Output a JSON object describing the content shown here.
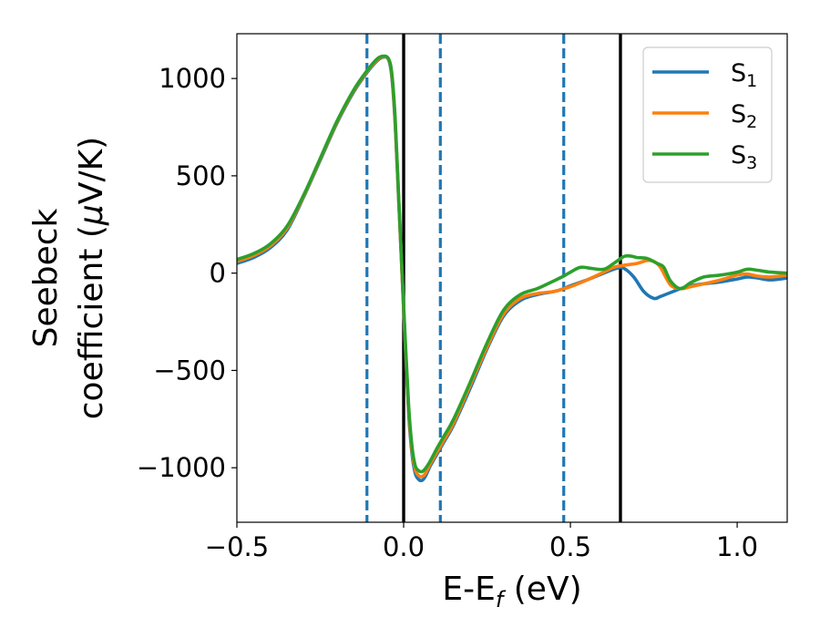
{
  "chart_data": {
    "type": "line",
    "xlabel": "E-E$_f$ (eV)",
    "ylabel": "Seebeck coefficient (μV/K)",
    "xlim": [
      -0.5,
      1.15
    ],
    "ylim": [
      -1280,
      1230
    ],
    "xticks": [
      -0.5,
      0.0,
      0.5,
      1.0
    ],
    "xtick_labels": [
      "−0.5",
      "0.0",
      "0.5",
      "1.0"
    ],
    "yticks": [
      -1000,
      -500,
      0,
      500,
      1000
    ],
    "ytick_labels": [
      "−1000",
      "−500",
      "0",
      "500",
      "1000"
    ],
    "grid": false,
    "legend_position": "top-right",
    "series": [
      {
        "name": "S1",
        "legend_main": "S",
        "legend_sub": "1",
        "color": "#1f77b4",
        "x": [
          -0.5,
          -0.45,
          -0.4,
          -0.35,
          -0.3,
          -0.25,
          -0.2,
          -0.15,
          -0.11,
          -0.08,
          -0.06,
          -0.045,
          -0.035,
          -0.025,
          -0.015,
          -0.005,
          0.005,
          0.015,
          0.025,
          0.035,
          0.045,
          0.055,
          0.065,
          0.08,
          0.1,
          0.12,
          0.15,
          0.2,
          0.25,
          0.3,
          0.35,
          0.4,
          0.45,
          0.48,
          0.5,
          0.55,
          0.6,
          0.64,
          0.66,
          0.69,
          0.72,
          0.75,
          0.77,
          0.8,
          0.83,
          0.86,
          0.9,
          0.95,
          1.0,
          1.03,
          1.06,
          1.1,
          1.15
        ],
        "y": [
          50,
          80,
          130,
          220,
          390,
          580,
          770,
          930,
          1030,
          1090,
          1110,
          1095,
          1000,
          750,
          380,
          0,
          -380,
          -720,
          -930,
          -1030,
          -1060,
          -1065,
          -1045,
          -990,
          -930,
          -870,
          -780,
          -590,
          -390,
          -220,
          -140,
          -110,
          -95,
          -80,
          -65,
          -35,
          0,
          25,
          25,
          -20,
          -95,
          -130,
          -120,
          -100,
          -80,
          -65,
          -55,
          -45,
          -30,
          -20,
          -25,
          -35,
          -25
        ]
      },
      {
        "name": "S2",
        "legend_main": "S",
        "legend_sub": "2",
        "color": "#ff7f0e",
        "x": [
          -0.5,
          -0.45,
          -0.4,
          -0.35,
          -0.3,
          -0.25,
          -0.2,
          -0.15,
          -0.11,
          -0.08,
          -0.06,
          -0.045,
          -0.035,
          -0.025,
          -0.015,
          -0.005,
          0.005,
          0.015,
          0.025,
          0.035,
          0.045,
          0.055,
          0.065,
          0.08,
          0.1,
          0.12,
          0.15,
          0.2,
          0.25,
          0.3,
          0.35,
          0.4,
          0.45,
          0.48,
          0.5,
          0.55,
          0.6,
          0.63,
          0.66,
          0.7,
          0.73,
          0.75,
          0.77,
          0.8,
          0.83,
          0.86,
          0.9,
          0.95,
          1.0,
          1.03,
          1.06,
          1.1,
          1.15
        ],
        "y": [
          60,
          90,
          140,
          230,
          395,
          585,
          775,
          935,
          1035,
          1095,
          1112,
          1098,
          1010,
          760,
          390,
          0,
          -370,
          -700,
          -910,
          -1010,
          -1040,
          -1045,
          -1030,
          -980,
          -920,
          -860,
          -770,
          -575,
          -380,
          -210,
          -130,
          -105,
          -95,
          -80,
          -70,
          -35,
          5,
          30,
          40,
          50,
          65,
          60,
          30,
          -60,
          -80,
          -70,
          -55,
          -35,
          -10,
          -5,
          -15,
          -20,
          -10
        ]
      },
      {
        "name": "S3",
        "legend_main": "S",
        "legend_sub": "3",
        "color": "#2ca02c",
        "x": [
          -0.5,
          -0.45,
          -0.4,
          -0.35,
          -0.3,
          -0.25,
          -0.2,
          -0.15,
          -0.11,
          -0.08,
          -0.06,
          -0.045,
          -0.035,
          -0.025,
          -0.015,
          -0.005,
          0.005,
          0.015,
          0.025,
          0.035,
          0.045,
          0.055,
          0.065,
          0.08,
          0.1,
          0.12,
          0.15,
          0.2,
          0.25,
          0.3,
          0.35,
          0.4,
          0.45,
          0.48,
          0.5,
          0.53,
          0.56,
          0.6,
          0.63,
          0.66,
          0.68,
          0.7,
          0.73,
          0.76,
          0.78,
          0.8,
          0.83,
          0.86,
          0.9,
          0.95,
          1.0,
          1.03,
          1.06,
          1.1,
          1.15
        ],
        "y": [
          70,
          100,
          150,
          240,
          400,
          590,
          780,
          940,
          1040,
          1100,
          1115,
          1100,
          1020,
          780,
          400,
          20,
          -350,
          -680,
          -890,
          -990,
          -1015,
          -1020,
          -1005,
          -965,
          -900,
          -840,
          -750,
          -560,
          -360,
          -190,
          -110,
          -80,
          -40,
          -15,
          5,
          30,
          25,
          20,
          50,
          85,
          88,
          80,
          75,
          50,
          30,
          -40,
          -80,
          -50,
          -20,
          -10,
          5,
          20,
          15,
          5,
          0
        ]
      }
    ],
    "vlines": [
      {
        "x": -0.11,
        "style": "dashed",
        "color": "#1f77b4"
      },
      {
        "x": 0.0,
        "style": "solid",
        "color": "#000000"
      },
      {
        "x": 0.11,
        "style": "dashed",
        "color": "#1f77b4"
      },
      {
        "x": 0.48,
        "style": "dashed",
        "color": "#1f77b4"
      },
      {
        "x": 0.65,
        "style": "solid",
        "color": "#000000"
      }
    ]
  }
}
